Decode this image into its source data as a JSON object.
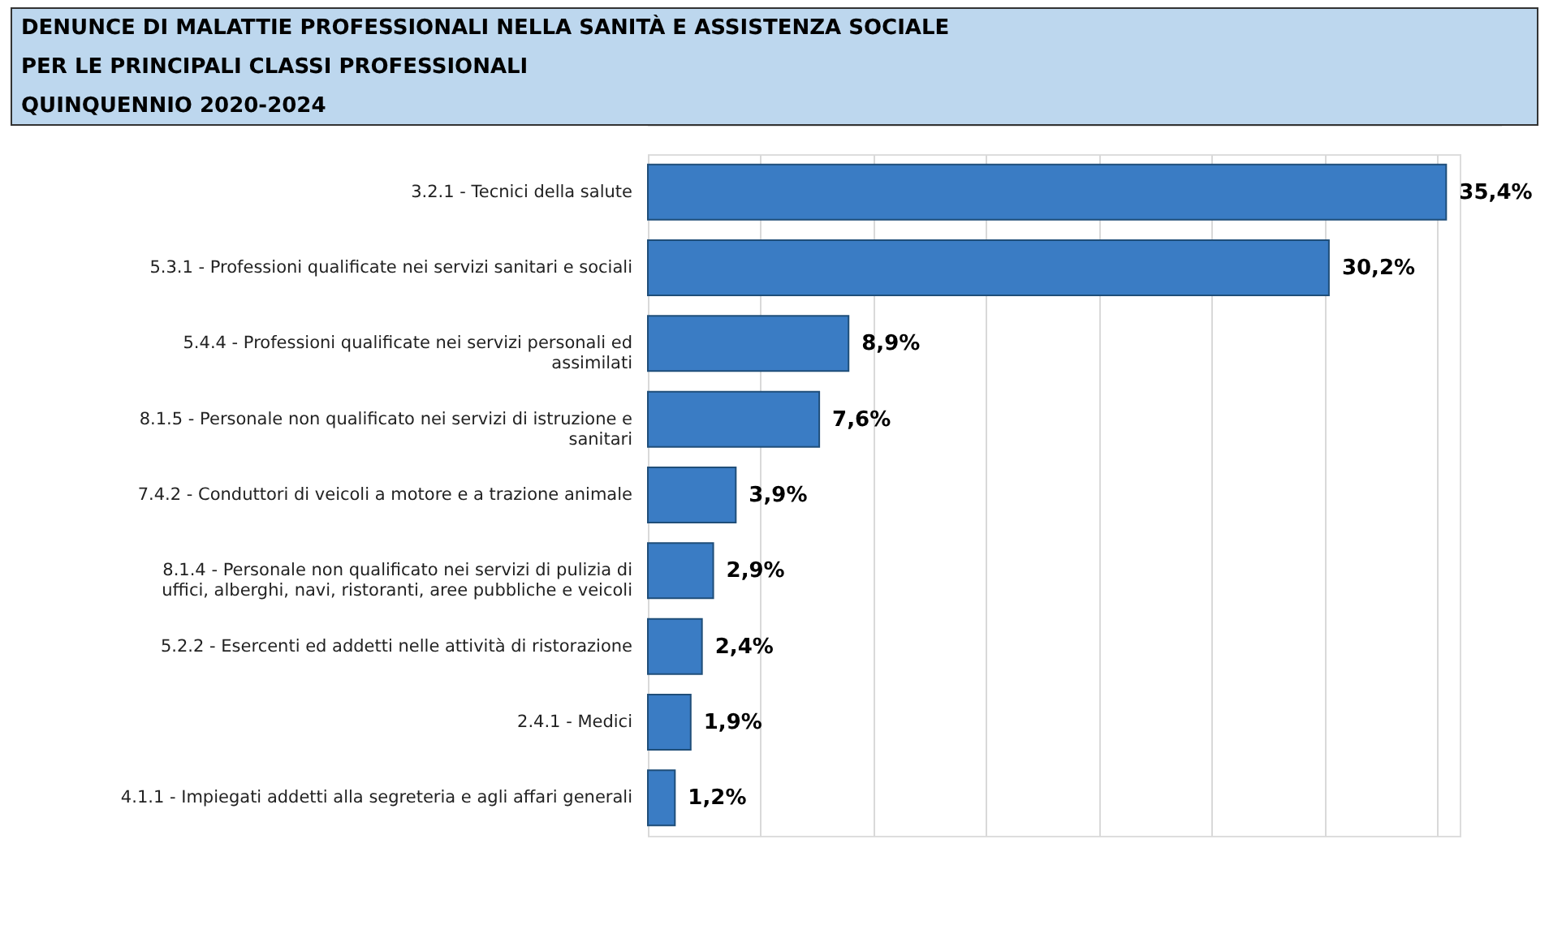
{
  "chart_data": {
    "type": "bar",
    "orientation": "horizontal",
    "title": "DENUNCE DI MALATTIE PROFESSIONALI NELLA SANITÀ E ASSISTENZA SOCIALE\nPER LE PRINCIPALI CLASSI PROFESSIONALI\nQUINQUENNIO 2020-2024",
    "categories": [
      "3.2.1 - Tecnici della salute",
      "5.3.1 - Professioni qualificate nei servizi sanitari e sociali",
      "5.4.4 - Professioni qualificate nei servizi personali ed assimilati",
      "8.1.5 - Personale non qualificato nei servizi di istruzione e sanitari",
      "7.4.2 - Conduttori di veicoli a motore e a trazione animale",
      "8.1.4 - Personale non qualificato nei servizi di pulizia di uffici, alberghi, navi, ristoranti, aree pubbliche e veicoli",
      "5.2.2 - Esercenti ed addetti nelle attività di ristorazione",
      "2.4.1 - Medici",
      "4.1.1 - Impiegati addetti alla segreteria e agli affari generali"
    ],
    "values": [
      35.4,
      30.2,
      8.9,
      7.6,
      3.9,
      2.9,
      2.4,
      1.9,
      1.2
    ],
    "value_labels": [
      "35,4%",
      "30,2%",
      "8,9%",
      "7,6%",
      "3,9%",
      "2,9%",
      "2,4%",
      "1,9%",
      "1,2%"
    ],
    "color": "#3a7cc4",
    "xlim": [
      0,
      36
    ],
    "xticks": [
      {
        "value": 0,
        "label": null
      },
      {
        "value": 5,
        "label": null
      },
      {
        "value": 10,
        "label": null
      },
      {
        "value": 15,
        "label": null
      },
      {
        "value": 20,
        "label": null
      },
      {
        "value": 25,
        "label": null
      },
      {
        "value": 30,
        "label": null
      },
      {
        "value": 35,
        "label": null
      }
    ],
    "grid": "x",
    "tick_labels": "y"
  }
}
